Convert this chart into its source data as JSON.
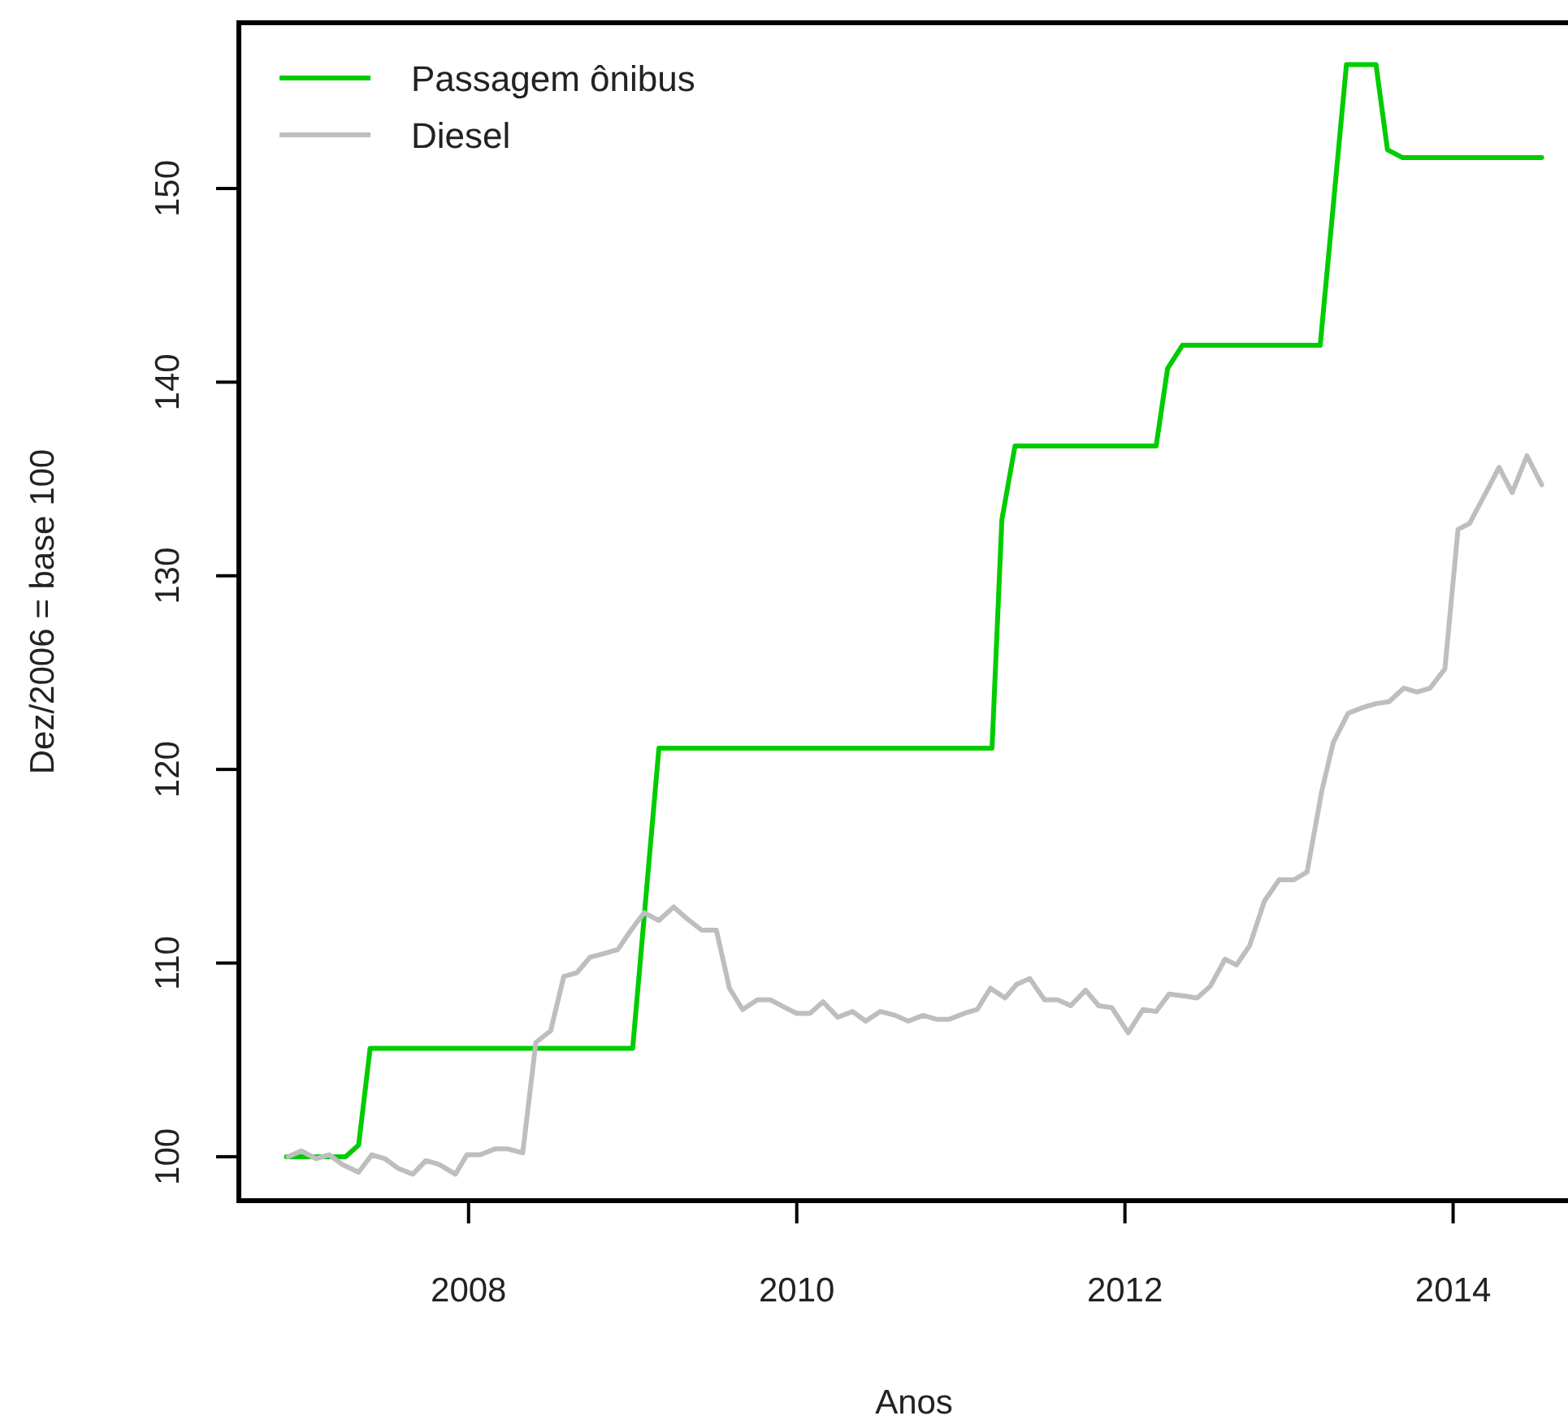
{
  "chart_data": {
    "type": "line",
    "xlabel": "Anos",
    "ylabel": "Dez/2006 = base 100",
    "xlim": [
      2006.6,
      2014.72
    ],
    "ylim": [
      97.73,
      158.56
    ],
    "xticks": [
      2008,
      2010,
      2012,
      2014
    ],
    "yticks": [
      100,
      110,
      120,
      130,
      140,
      150
    ],
    "grid": false,
    "legend": "top left",
    "line_style": "solid",
    "marker": "none",
    "series": [
      {
        "name": "Passagem ônibus",
        "color": "#00cc00",
        "x": [
          2006.89,
          2007.25,
          2007.33,
          2007.4,
          2009.0,
          2009.16,
          2011.19,
          2011.25,
          2011.33,
          2012.19,
          2012.26,
          2012.35,
          2013.19,
          2013.35,
          2013.53,
          2013.6,
          2013.69,
          2014.54
        ],
        "values": [
          100,
          100,
          100.6,
          105.6,
          105.6,
          121.1,
          121.1,
          132.9,
          136.7,
          136.7,
          140.7,
          141.9,
          141.9,
          156.4,
          156.4,
          152.0,
          151.6,
          151.6
        ]
      },
      {
        "name": "Diesel",
        "color": "#bebebe",
        "x": [
          2006.9,
          2006.98,
          2007.07,
          2007.15,
          2007.23,
          2007.33,
          2007.41,
          2007.49,
          2007.57,
          2007.66,
          2007.74,
          2007.82,
          2007.92,
          2007.99,
          2008.07,
          2008.16,
          2008.24,
          2008.33,
          2008.41,
          2008.5,
          2008.58,
          2008.66,
          2008.74,
          2008.83,
          2008.91,
          2008.99,
          2009.07,
          2009.16,
          2009.25,
          2009.33,
          2009.42,
          2009.51,
          2009.59,
          2009.67,
          2009.76,
          2009.84,
          2009.93,
          2010.0,
          2010.08,
          2010.16,
          2010.25,
          2010.34,
          2010.42,
          2010.51,
          2010.6,
          2010.68,
          2010.77,
          2010.85,
          2010.93,
          2011.02,
          2011.1,
          2011.18,
          2011.27,
          2011.34,
          2011.42,
          2011.51,
          2011.59,
          2011.67,
          2011.76,
          2011.84,
          2011.92,
          2012.02,
          2012.11,
          2012.19,
          2012.27,
          2012.36,
          2012.44,
          2012.52,
          2012.61,
          2012.68,
          2012.76,
          2012.85,
          2012.94,
          2013.03,
          2013.11,
          2013.2,
          2013.27,
          2013.36,
          2013.45,
          2013.53,
          2013.61,
          2013.7,
          2013.78,
          2013.86,
          2013.95,
          2014.03,
          2014.1,
          2014.2,
          2014.28,
          2014.36,
          2014.45,
          2014.54
        ],
        "values": [
          100.0,
          100.3,
          99.9,
          100.1,
          99.6,
          99.2,
          100.1,
          99.9,
          99.4,
          99.1,
          99.8,
          99.6,
          99.1,
          100.1,
          100.1,
          100.4,
          100.4,
          100.2,
          105.9,
          106.5,
          109.3,
          109.5,
          110.3,
          110.5,
          110.7,
          111.7,
          112.6,
          112.2,
          112.9,
          112.3,
          111.7,
          111.7,
          108.7,
          107.6,
          108.1,
          108.1,
          107.7,
          107.4,
          107.4,
          108.0,
          107.2,
          107.5,
          107.0,
          107.5,
          107.3,
          107.0,
          107.3,
          107.1,
          107.1,
          107.4,
          107.6,
          108.7,
          108.2,
          108.9,
          109.2,
          108.1,
          108.1,
          107.8,
          108.6,
          107.8,
          107.7,
          106.4,
          107.6,
          107.5,
          108.4,
          108.3,
          108.2,
          108.8,
          110.2,
          109.9,
          110.9,
          113.2,
          114.3,
          114.3,
          114.7,
          118.9,
          121.4,
          122.9,
          123.2,
          123.4,
          123.5,
          124.2,
          124.0,
          124.2,
          125.2,
          132.4,
          132.7,
          134.3,
          135.6,
          134.3,
          136.2,
          134.7
        ]
      }
    ]
  }
}
